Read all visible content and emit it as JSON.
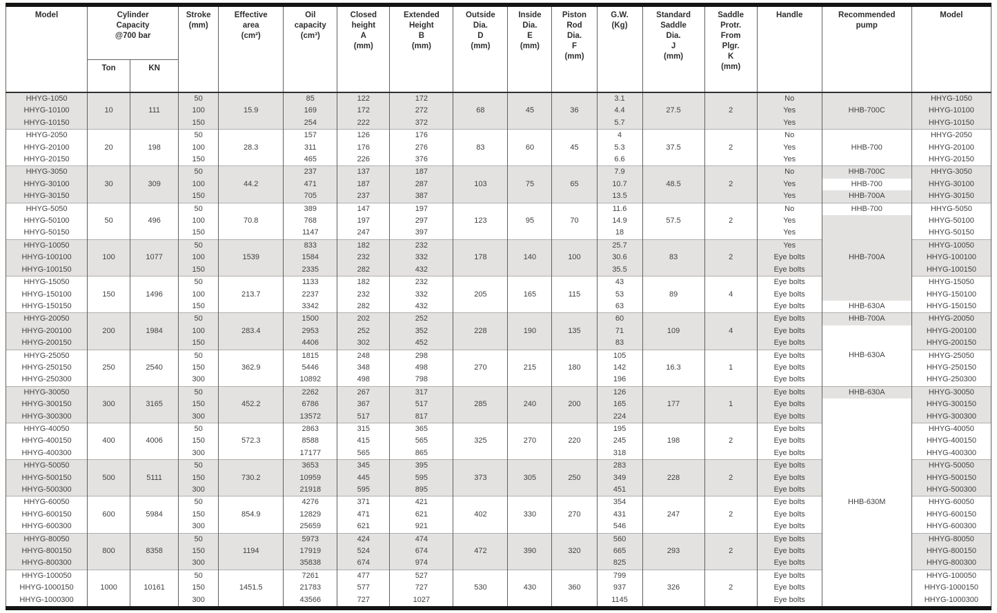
{
  "table": {
    "header": {
      "model_left": "Model",
      "capacity": "Cylinder\nCapacity\n@700 bar",
      "ton": "Ton",
      "kn": "KN",
      "stroke": "Stroke\n(mm)",
      "area": "Effective\narea\n(cm²)",
      "oil": "Oil\ncapacity\n(cm³)",
      "closed_height": "Closed\nheight\nA\n(mm)",
      "extended_height": "Extended\nHeight\nB\n(mm)",
      "outside_dia": "Outside\nDia.\nD\n(mm)",
      "inside_dia": "Inside\nDia.\nE\n(mm)",
      "piston_rod": "Piston\nRod\nDia.\nF\n(mm)",
      "gw": "G.W.\n(Kg)",
      "saddle_dia": "Standard\nSaddle\nDia.\nJ\n(mm)",
      "saddle_protr": "Saddle\nProtr.\nFrom\nPlgr.\nK\n(mm)",
      "handle": "Handle",
      "pump": "Recommended\npump",
      "model_right": "Model"
    },
    "groups": [
      {
        "ton": "10",
        "kn": "111",
        "area": "15.9",
        "d": "68",
        "e": "45",
        "f": "36",
        "j": "27.5",
        "k": "2",
        "rows": [
          {
            "model": "HHYG-1050",
            "stroke": "50",
            "oil": "85",
            "a": "122",
            "b": "172",
            "gw": "3.1",
            "handle": "No"
          },
          {
            "model": "HHYG-10100",
            "stroke": "100",
            "oil": "169",
            "a": "172",
            "b": "272",
            "gw": "4.4",
            "handle": "Yes"
          },
          {
            "model": "HHYG-10150",
            "stroke": "150",
            "oil": "254",
            "a": "222",
            "b": "372",
            "gw": "5.7",
            "handle": "Yes"
          }
        ]
      },
      {
        "ton": "20",
        "kn": "198",
        "area": "28.3",
        "d": "83",
        "e": "60",
        "f": "45",
        "j": "37.5",
        "k": "2",
        "rows": [
          {
            "model": "HHYG-2050",
            "stroke": "50",
            "oil": "157",
            "a": "126",
            "b": "176",
            "gw": "4",
            "handle": "No"
          },
          {
            "model": "HHYG-20100",
            "stroke": "100",
            "oil": "311",
            "a": "176",
            "b": "276",
            "gw": "5.3",
            "handle": "Yes"
          },
          {
            "model": "HHYG-20150",
            "stroke": "150",
            "oil": "465",
            "a": "226",
            "b": "376",
            "gw": "6.6",
            "handle": "Yes"
          }
        ]
      },
      {
        "ton": "30",
        "kn": "309",
        "area": "44.2",
        "d": "103",
        "e": "75",
        "f": "65",
        "j": "48.5",
        "k": "2",
        "rows": [
          {
            "model": "HHYG-3050",
            "stroke": "50",
            "oil": "237",
            "a": "137",
            "b": "187",
            "gw": "7.9",
            "handle": "No"
          },
          {
            "model": "HHYG-30100",
            "stroke": "100",
            "oil": "471",
            "a": "187",
            "b": "287",
            "gw": "10.7",
            "handle": "Yes"
          },
          {
            "model": "HHYG-30150",
            "stroke": "150",
            "oil": "705",
            "a": "237",
            "b": "387",
            "gw": "13.5",
            "handle": "Yes"
          }
        ]
      },
      {
        "ton": "50",
        "kn": "496",
        "area": "70.8",
        "d": "123",
        "e": "95",
        "f": "70",
        "j": "57.5",
        "k": "2",
        "rows": [
          {
            "model": "HHYG-5050",
            "stroke": "50",
            "oil": "389",
            "a": "147",
            "b": "197",
            "gw": "11.6",
            "handle": "No"
          },
          {
            "model": "HHYG-50100",
            "stroke": "100",
            "oil": "768",
            "a": "197",
            "b": "297",
            "gw": "14.9",
            "handle": "Yes"
          },
          {
            "model": "HHYG-50150",
            "stroke": "150",
            "oil": "1147",
            "a": "247",
            "b": "397",
            "gw": "18",
            "handle": "Yes"
          }
        ]
      },
      {
        "ton": "100",
        "kn": "1077",
        "area": "1539",
        "d": "178",
        "e": "140",
        "f": "100",
        "j": "83",
        "k": "2",
        "rows": [
          {
            "model": "HHYG-10050",
            "stroke": "50",
            "oil": "833",
            "a": "182",
            "b": "232",
            "gw": "25.7",
            "handle": "Yes"
          },
          {
            "model": "HHYG-100100",
            "stroke": "100",
            "oil": "1584",
            "a": "232",
            "b": "332",
            "gw": "30.6",
            "handle": "Eye bolts"
          },
          {
            "model": "HHYG-100150",
            "stroke": "150",
            "oil": "2335",
            "a": "282",
            "b": "432",
            "gw": "35.5",
            "handle": "Eye bolts"
          }
        ]
      },
      {
        "ton": "150",
        "kn": "1496",
        "area": "213.7",
        "d": "205",
        "e": "165",
        "f": "115",
        "j": "89",
        "k": "4",
        "rows": [
          {
            "model": "HHYG-15050",
            "stroke": "50",
            "oil": "1133",
            "a": "182",
            "b": "232",
            "gw": "43",
            "handle": "Eye bolts"
          },
          {
            "model": "HHYG-150100",
            "stroke": "100",
            "oil": "2237",
            "a": "232",
            "b": "332",
            "gw": "53",
            "handle": "Eye bolts"
          },
          {
            "model": "HHYG-150150",
            "stroke": "150",
            "oil": "3342",
            "a": "282",
            "b": "432",
            "gw": "63",
            "handle": "Eye bolts"
          }
        ]
      },
      {
        "ton": "200",
        "kn": "1984",
        "area": "283.4",
        "d": "228",
        "e": "190",
        "f": "135",
        "j": "109",
        "k": "4",
        "rows": [
          {
            "model": "HHYG-20050",
            "stroke": "50",
            "oil": "1500",
            "a": "202",
            "b": "252",
            "gw": "60",
            "handle": "Eye bolts"
          },
          {
            "model": "HHYG-200100",
            "stroke": "100",
            "oil": "2953",
            "a": "252",
            "b": "352",
            "gw": "71",
            "handle": "Eye bolts"
          },
          {
            "model": "HHYG-200150",
            "stroke": "150",
            "oil": "4406",
            "a": "302",
            "b": "452",
            "gw": "83",
            "handle": "Eye bolts"
          }
        ]
      },
      {
        "ton": "250",
        "kn": "2540",
        "area": "362.9",
        "d": "270",
        "e": "215",
        "f": "180",
        "j": "16.3",
        "k": "1",
        "rows": [
          {
            "model": "HHYG-25050",
            "stroke": "50",
            "oil": "1815",
            "a": "248",
            "b": "298",
            "gw": "105",
            "handle": "Eye bolts"
          },
          {
            "model": "HHYG-250150",
            "stroke": "150",
            "oil": "5446",
            "a": "348",
            "b": "498",
            "gw": "142",
            "handle": "Eye bolts"
          },
          {
            "model": "HHYG-250300",
            "stroke": "300",
            "oil": "10892",
            "a": "498",
            "b": "798",
            "gw": "196",
            "handle": "Eye bolts"
          }
        ]
      },
      {
        "ton": "300",
        "kn": "3165",
        "area": "452.2",
        "d": "285",
        "e": "240",
        "f": "200",
        "j": "177",
        "k": "1",
        "rows": [
          {
            "model": "HHYG-30050",
            "stroke": "50",
            "oil": "2262",
            "a": "267",
            "b": "317",
            "gw": "126",
            "handle": "Eye bolts"
          },
          {
            "model": "HHYG-300150",
            "stroke": "150",
            "oil": "6786",
            "a": "367",
            "b": "517",
            "gw": "165",
            "handle": "Eye bolts"
          },
          {
            "model": "HHYG-300300",
            "stroke": "300",
            "oil": "13572",
            "a": "517",
            "b": "817",
            "gw": "224",
            "handle": "Eye bolts"
          }
        ]
      },
      {
        "ton": "400",
        "kn": "4006",
        "area": "572.3",
        "d": "325",
        "e": "270",
        "f": "220",
        "j": "198",
        "k": "2",
        "rows": [
          {
            "model": "HHYG-40050",
            "stroke": "50",
            "oil": "2863",
            "a": "315",
            "b": "365",
            "gw": "195",
            "handle": "Eye bolts"
          },
          {
            "model": "HHYG-400150",
            "stroke": "150",
            "oil": "8588",
            "a": "415",
            "b": "565",
            "gw": "245",
            "handle": "Eye bolts"
          },
          {
            "model": "HHYG-400300",
            "stroke": "300",
            "oil": "17177",
            "a": "565",
            "b": "865",
            "gw": "318",
            "handle": "Eye bolts"
          }
        ]
      },
      {
        "ton": "500",
        "kn": "5111",
        "area": "730.2",
        "d": "373",
        "e": "305",
        "f": "250",
        "j": "228",
        "k": "2",
        "rows": [
          {
            "model": "HHYG-50050",
            "stroke": "50",
            "oil": "3653",
            "a": "345",
            "b": "395",
            "gw": "283",
            "handle": "Eye bolts"
          },
          {
            "model": "HHYG-500150",
            "stroke": "150",
            "oil": "10959",
            "a": "445",
            "b": "595",
            "gw": "349",
            "handle": "Eye bolts"
          },
          {
            "model": "HHYG-500300",
            "stroke": "300",
            "oil": "21918",
            "a": "595",
            "b": "895",
            "gw": "451",
            "handle": "Eye bolts"
          }
        ]
      },
      {
        "ton": "600",
        "kn": "5984",
        "area": "854.9",
        "d": "402",
        "e": "330",
        "f": "270",
        "j": "247",
        "k": "2",
        "rows": [
          {
            "model": "HHYG-60050",
            "stroke": "50",
            "oil": "4276",
            "a": "371",
            "b": "421",
            "gw": "354",
            "handle": "Eye bolts"
          },
          {
            "model": "HHYG-600150",
            "stroke": "150",
            "oil": "12829",
            "a": "471",
            "b": "621",
            "gw": "431",
            "handle": "Eye bolts"
          },
          {
            "model": "HHYG-600300",
            "stroke": "300",
            "oil": "25659",
            "a": "621",
            "b": "921",
            "gw": "546",
            "handle": "Eye bolts"
          }
        ]
      },
      {
        "ton": "800",
        "kn": "8358",
        "area": "1194",
        "d": "472",
        "e": "390",
        "f": "320",
        "j": "293",
        "k": "2",
        "rows": [
          {
            "model": "HHYG-80050",
            "stroke": "50",
            "oil": "5973",
            "a": "424",
            "b": "474",
            "gw": "560",
            "handle": "Eye bolts"
          },
          {
            "model": "HHYG-800150",
            "stroke": "150",
            "oil": "17919",
            "a": "524",
            "b": "674",
            "gw": "665",
            "handle": "Eye bolts"
          },
          {
            "model": "HHYG-800300",
            "stroke": "300",
            "oil": "35838",
            "a": "674",
            "b": "974",
            "gw": "825",
            "handle": "Eye bolts"
          }
        ]
      },
      {
        "ton": "1000",
        "kn": "10161",
        "area": "1451.5",
        "d": "530",
        "e": "430",
        "f": "360",
        "j": "326",
        "k": "2",
        "rows": [
          {
            "model": "HHYG-100050",
            "stroke": "50",
            "oil": "7261",
            "a": "477",
            "b": "527",
            "gw": "799",
            "handle": "Eye bolts"
          },
          {
            "model": "HHYG-1000150",
            "stroke": "150",
            "oil": "21783",
            "a": "577",
            "b": "727",
            "gw": "937",
            "handle": "Eye bolts"
          },
          {
            "model": "HHYG-1000300",
            "stroke": "300",
            "oil": "43566",
            "a": "727",
            "b": "1027",
            "gw": "1145",
            "handle": "Eye bolts"
          }
        ]
      }
    ],
    "pump_cells": [
      {
        "row": 1,
        "span": 3,
        "label": "HHB-700C",
        "bg": "gray"
      },
      {
        "row": 4,
        "span": 3,
        "label": "HHB-700",
        "bg": "white"
      },
      {
        "row": 7,
        "span": 1,
        "label": "HHB-700C",
        "bg": "gray"
      },
      {
        "row": 8,
        "span": 1,
        "label": "HHB-700",
        "bg": "white"
      },
      {
        "row": 9,
        "span": 1,
        "label": "HHB-700A",
        "bg": "gray"
      },
      {
        "row": 10,
        "span": 1,
        "label": "HHB-700",
        "bg": "white"
      },
      {
        "row": 11,
        "span": 7,
        "label": "HHB-700A",
        "bg": "gray"
      },
      {
        "row": 18,
        "span": 1,
        "label": "HHB-630A",
        "bg": "white"
      },
      {
        "row": 19,
        "span": 1,
        "label": "HHB-700A",
        "bg": "gray"
      },
      {
        "row": 20,
        "span": 5,
        "label": "HHB-630A",
        "bg": "white"
      },
      {
        "row": 25,
        "span": 1,
        "label": "HHB-630A",
        "bg": "gray"
      },
      {
        "row": 26,
        "span": 17,
        "label": "HHB-630M",
        "bg": "white"
      }
    ]
  }
}
